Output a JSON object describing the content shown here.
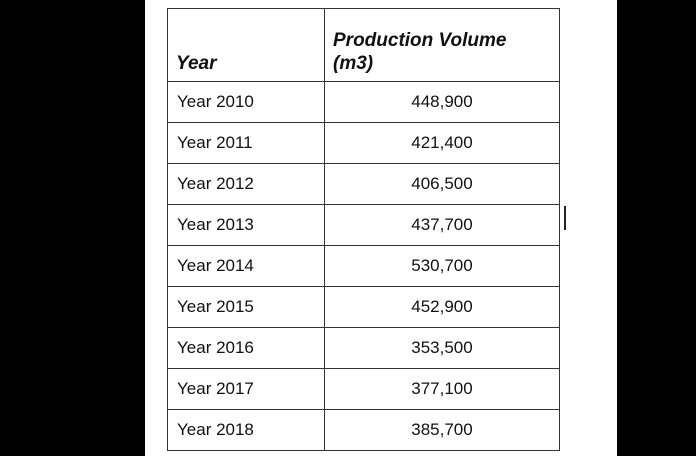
{
  "table": {
    "headers": {
      "year": "Year",
      "volume_line1": "Production Volume",
      "volume_line2": "(m3)"
    },
    "rows": [
      {
        "year": "Year 2010",
        "volume": "448,900"
      },
      {
        "year": "Year 2011",
        "volume": "421,400"
      },
      {
        "year": "Year 2012",
        "volume": "406,500"
      },
      {
        "year": "Year 2013",
        "volume": "437,700"
      },
      {
        "year": "Year 2014",
        "volume": "530,700"
      },
      {
        "year": "Year 2015",
        "volume": "452,900"
      },
      {
        "year": "Year 2016",
        "volume": "353,500"
      },
      {
        "year": "Year 2017",
        "volume": "377,100"
      },
      {
        "year": "Year 2018",
        "volume": "385,700"
      }
    ]
  }
}
